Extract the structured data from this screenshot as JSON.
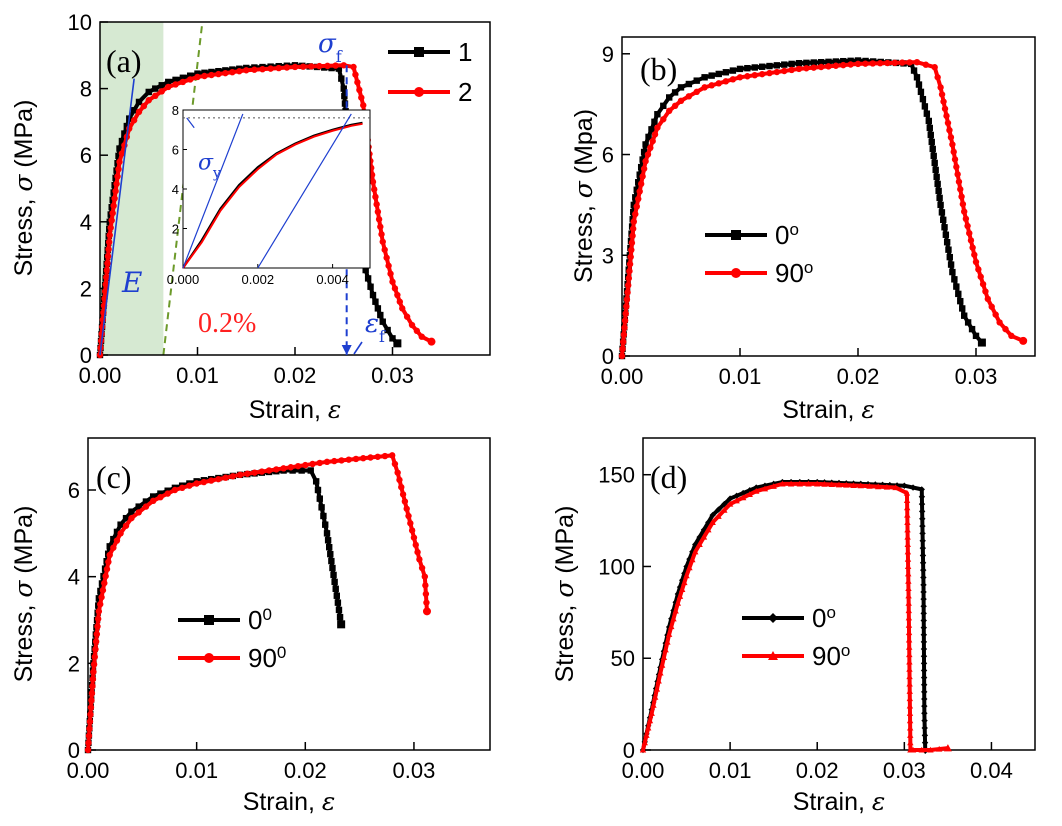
{
  "chart_data": [
    {
      "panel": "(a)",
      "type": "line",
      "xlabel": "Strain, ",
      "xlabel_symbol": "ε",
      "ylabel": "Stress, ",
      "ylabel_symbol": "σ",
      "ylabel_unit": " (MPa)",
      "xlim": [
        0,
        0.04
      ],
      "ylim": [
        0,
        10
      ],
      "x_ticks": [
        0.0,
        0.01,
        0.02,
        0.03
      ],
      "x_tick_labels": [
        "0.00",
        "0.01",
        "0.02",
        "0.03"
      ],
      "y_ticks": [
        0,
        2,
        4,
        6,
        8,
        10
      ],
      "y_tick_labels": [
        "0",
        "2",
        "4",
        "6",
        "8",
        "10"
      ],
      "legend_position": "top-right",
      "series": [
        {
          "name": "1",
          "color": "#000000",
          "marker": "square",
          "x": [
            0,
            0.001,
            0.002,
            0.003,
            0.004,
            0.005,
            0.007,
            0.01,
            0.015,
            0.02,
            0.0245,
            0.025,
            0.0255,
            0.026,
            0.027,
            0.028,
            0.029,
            0.03,
            0.0305
          ],
          "y": [
            0,
            4.0,
            6.2,
            7.1,
            7.6,
            7.9,
            8.2,
            8.45,
            8.62,
            8.7,
            8.6,
            8.0,
            6.2,
            4.2,
            2.8,
            1.8,
            1.0,
            0.5,
            0.35
          ]
        },
        {
          "name": "2",
          "color": "#ff0000",
          "marker": "circle",
          "x": [
            0,
            0.001,
            0.002,
            0.003,
            0.004,
            0.005,
            0.007,
            0.01,
            0.015,
            0.02,
            0.025,
            0.026,
            0.027,
            0.028,
            0.029,
            0.03,
            0.031,
            0.032,
            0.033,
            0.034
          ],
          "y": [
            0,
            3.6,
            5.8,
            6.8,
            7.3,
            7.65,
            8.05,
            8.35,
            8.55,
            8.65,
            8.7,
            8.65,
            7.5,
            5.2,
            3.4,
            2.2,
            1.4,
            0.9,
            0.55,
            0.4
          ]
        }
      ],
      "annotations": {
        "E": "E",
        "offset": "0.2%",
        "sigma_f": "σ",
        "sigma_f_sub": "f",
        "eps_f": "ε",
        "eps_f_sub": "f",
        "sigma_y": "σ",
        "sigma_y_sub": "y"
      },
      "inset": {
        "xlim": [
          0,
          0.005
        ],
        "ylim": [
          0,
          8
        ],
        "x_ticks": [
          0.0,
          0.002,
          0.004
        ],
        "x_tick_labels": [
          "0.000",
          "0.002",
          "0.004"
        ],
        "y_ticks": [
          2,
          4,
          6,
          8
        ],
        "y_tick_labels": [
          "2",
          "4",
          "6",
          "8"
        ]
      }
    },
    {
      "panel": "(b)",
      "type": "line",
      "xlabel": "Strain, ",
      "xlabel_symbol": "ε",
      "ylabel": "Stress, ",
      "ylabel_symbol": "σ",
      "ylabel_unit": " (Mpa)",
      "xlim": [
        0,
        0.035
      ],
      "ylim": [
        0,
        9.5
      ],
      "x_ticks": [
        0.0,
        0.01,
        0.02,
        0.03
      ],
      "x_tick_labels": [
        "0.00",
        "0.01",
        "0.02",
        "0.03"
      ],
      "y_ticks": [
        0,
        3,
        6,
        9
      ],
      "y_tick_labels": [
        "0",
        "3",
        "6",
        "9"
      ],
      "legend_position": "center-left",
      "series": [
        {
          "name": "0",
          "name_sup": "o",
          "color": "#000000",
          "marker": "square",
          "x": [
            0,
            0.001,
            0.002,
            0.003,
            0.004,
            0.005,
            0.007,
            0.01,
            0.015,
            0.02,
            0.0245,
            0.025,
            0.026,
            0.027,
            0.028,
            0.029,
            0.03,
            0.0305
          ],
          "y": [
            0,
            4.5,
            6.3,
            7.2,
            7.7,
            8.0,
            8.3,
            8.55,
            8.72,
            8.8,
            8.7,
            8.3,
            7.0,
            4.5,
            2.5,
            1.2,
            0.6,
            0.4
          ]
        },
        {
          "name": "90",
          "name_sup": "o",
          "color": "#ff0000",
          "marker": "circle",
          "x": [
            0,
            0.001,
            0.002,
            0.003,
            0.004,
            0.005,
            0.007,
            0.01,
            0.015,
            0.02,
            0.025,
            0.0265,
            0.027,
            0.028,
            0.029,
            0.03,
            0.031,
            0.032,
            0.033,
            0.034
          ],
          "y": [
            0,
            4.0,
            5.8,
            6.8,
            7.3,
            7.6,
            8.0,
            8.3,
            8.55,
            8.7,
            8.75,
            8.6,
            8.0,
            6.3,
            4.3,
            2.8,
            1.7,
            1.0,
            0.6,
            0.45
          ]
        }
      ]
    },
    {
      "panel": "(c)",
      "type": "line",
      "xlabel": "Strain, ",
      "xlabel_symbol": "ε",
      "ylabel": "Stress, ",
      "ylabel_symbol": "σ",
      "ylabel_unit": " (MPa)",
      "xlim": [
        0,
        0.037
      ],
      "ylim": [
        0,
        7.2
      ],
      "x_ticks": [
        0.0,
        0.01,
        0.02,
        0.03
      ],
      "x_tick_labels": [
        "0.00",
        "0.01",
        "0.02",
        "0.03"
      ],
      "y_ticks": [
        0,
        2,
        4,
        6
      ],
      "y_tick_labels": [
        "0",
        "2",
        "4",
        "6"
      ],
      "legend_position": "center",
      "series": [
        {
          "name": "0",
          "name_sup": "0",
          "color": "#000000",
          "marker": "square",
          "x": [
            0,
            0.0005,
            0.001,
            0.002,
            0.003,
            0.004,
            0.006,
            0.008,
            0.01,
            0.014,
            0.018,
            0.0205,
            0.021,
            0.0215,
            0.022,
            0.0225,
            0.023,
            0.0233
          ],
          "y": [
            0,
            2.0,
            3.5,
            4.7,
            5.2,
            5.5,
            5.85,
            6.05,
            6.2,
            6.35,
            6.45,
            6.45,
            6.2,
            5.6,
            5.0,
            4.2,
            3.4,
            2.9
          ]
        },
        {
          "name": "90",
          "name_sup": "0",
          "color": "#ff0000",
          "marker": "circle",
          "x": [
            0,
            0.0005,
            0.001,
            0.002,
            0.003,
            0.004,
            0.006,
            0.008,
            0.01,
            0.014,
            0.018,
            0.022,
            0.026,
            0.028,
            0.0285,
            0.029,
            0.0295,
            0.03,
            0.0305,
            0.031,
            0.0312
          ],
          "y": [
            0,
            1.8,
            3.2,
            4.5,
            5.0,
            5.35,
            5.75,
            6.0,
            6.15,
            6.35,
            6.5,
            6.65,
            6.75,
            6.8,
            6.4,
            5.9,
            5.4,
            4.9,
            4.4,
            4.0,
            3.2
          ]
        }
      ]
    },
    {
      "panel": "(d)",
      "type": "line",
      "xlabel": "Strain, ",
      "xlabel_symbol": "ε",
      "ylabel": "Stress, ",
      "ylabel_symbol": "σ",
      "ylabel_unit": " (MPa)",
      "xlim": [
        0,
        0.045
      ],
      "ylim": [
        0,
        170
      ],
      "x_ticks": [
        0.0,
        0.01,
        0.02,
        0.03,
        0.04
      ],
      "x_tick_labels": [
        "0.00",
        "0.01",
        "0.02",
        "0.03",
        "0.04"
      ],
      "y_ticks": [
        0,
        50,
        100,
        150
      ],
      "y_tick_labels": [
        "0",
        "50",
        "100",
        "150"
      ],
      "legend_position": "center",
      "series": [
        {
          "name": "0",
          "name_sup": "o",
          "color": "#000000",
          "marker": "diamond",
          "x": [
            0,
            0.001,
            0.002,
            0.003,
            0.004,
            0.005,
            0.006,
            0.008,
            0.01,
            0.013,
            0.016,
            0.02,
            0.025,
            0.03,
            0.032,
            0.0322,
            0.0323,
            0.0324
          ],
          "y": [
            0,
            22,
            45,
            67,
            85,
            100,
            112,
            128,
            137,
            143,
            146,
            146,
            145,
            144,
            142,
            90,
            20,
            0
          ]
        },
        {
          "name": "90",
          "name_sup": "o",
          "color": "#ff0000",
          "marker": "triangle",
          "x": [
            0,
            0.001,
            0.002,
            0.003,
            0.004,
            0.005,
            0.006,
            0.008,
            0.01,
            0.013,
            0.016,
            0.02,
            0.025,
            0.029,
            0.0303,
            0.0305,
            0.0307,
            0.031,
            0.033,
            0.035
          ],
          "y": [
            0,
            20,
            42,
            63,
            80,
            95,
            108,
            124,
            134,
            141,
            145,
            145,
            144,
            143,
            140,
            80,
            0,
            0,
            0,
            1
          ]
        }
      ]
    }
  ]
}
